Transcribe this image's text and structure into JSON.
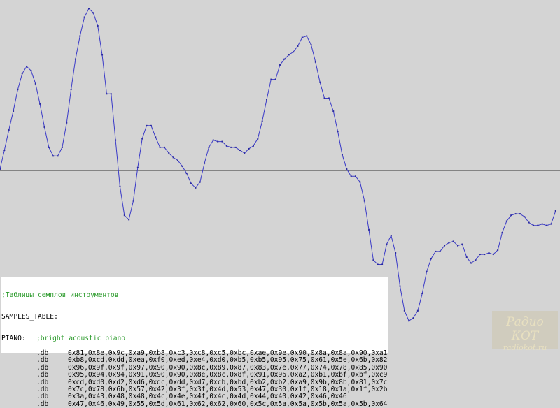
{
  "listing": {
    "comment": ";Таблицы семплов инструментов",
    "label": "SAMPLES_TABLE:",
    "instrument": "PIANO:",
    "instrument_comment": ";bright acoustic piano",
    "directive": ".db",
    "rows": [
      [
        "0x81,",
        "0x8e,",
        "0x9c,",
        "0xa9,",
        "0xb8,",
        "0xc3,",
        "0xc8,",
        "0xc5,",
        "0xbc,",
        "0xae,",
        "0x9e,",
        "0x90,",
        "0x8a,",
        "0x8a,",
        "0x90,",
        "0xa1"
      ],
      [
        "0xb8,",
        "0xcd,",
        "0xdd,",
        "0xea,",
        "0xf0,",
        "0xed,",
        "0xe4,",
        "0xd0,",
        "0xb5,",
        "0xb5,",
        "0x95,",
        "0x75,",
        "0x61,",
        "0x5e,",
        "0x6b,",
        "0x82"
      ],
      [
        "0x96,",
        "0x9f,",
        "0x9f,",
        "0x97,",
        "0x90,",
        "0x90,",
        "0x8c,",
        "0x89,",
        "0x87,",
        "0x83,",
        "0x7e,",
        "0x77,",
        "0x74,",
        "0x78,",
        "0x85,",
        "0x90"
      ],
      [
        "0x95,",
        "0x94,",
        "0x94,",
        "0x91,",
        "0x90,",
        "0x90,",
        "0x8e,",
        "0x8c,",
        "0x8f,",
        "0x91,",
        "0x96,",
        "0xa2,",
        "0xb1,",
        "0xbf,",
        "0xbf,",
        "0xc9"
      ],
      [
        "0xcd,",
        "0xd0,",
        "0xd2,",
        "0xd6,",
        "0xdc,",
        "0xdd,",
        "0xd7,",
        "0xcb,",
        "0xbd,",
        "0xb2,",
        "0xb2,",
        "0xa9,",
        "0x9b,",
        "0x8b,",
        "0x81,",
        "0x7c"
      ],
      [
        "0x7c,",
        "0x78,",
        "0x6b,",
        "0x57,",
        "0x42,",
        "0x3f,",
        "0x3f,",
        "0x4d,",
        "0x53,",
        "0x47,",
        "0x30,",
        "0x1f,",
        "0x18,",
        "0x1a,",
        "0x1f,",
        "0x2b"
      ],
      [
        "0x3a,",
        "0x43,",
        "0x48,",
        "0x48,",
        "0x4c,",
        "0x4e,",
        "0x4f,",
        "0x4c,",
        "0x4d,",
        "0x44,",
        "0x40,",
        "0x42,",
        "0x46,",
        "0x46"
      ],
      [
        "0x47,",
        "0x46,",
        "0x49,",
        "0x55,",
        "0x5d,",
        "0x61,",
        "0x62,",
        "0x62,",
        "0x60,",
        "0x5c,",
        "0x5a,",
        "0x5a,",
        "0x5b,",
        "0x5a,",
        "0x5b,",
        "0x64"
      ]
    ]
  },
  "logo": {
    "title": "Радио КОТ",
    "url": "radiokot.ru"
  }
}
